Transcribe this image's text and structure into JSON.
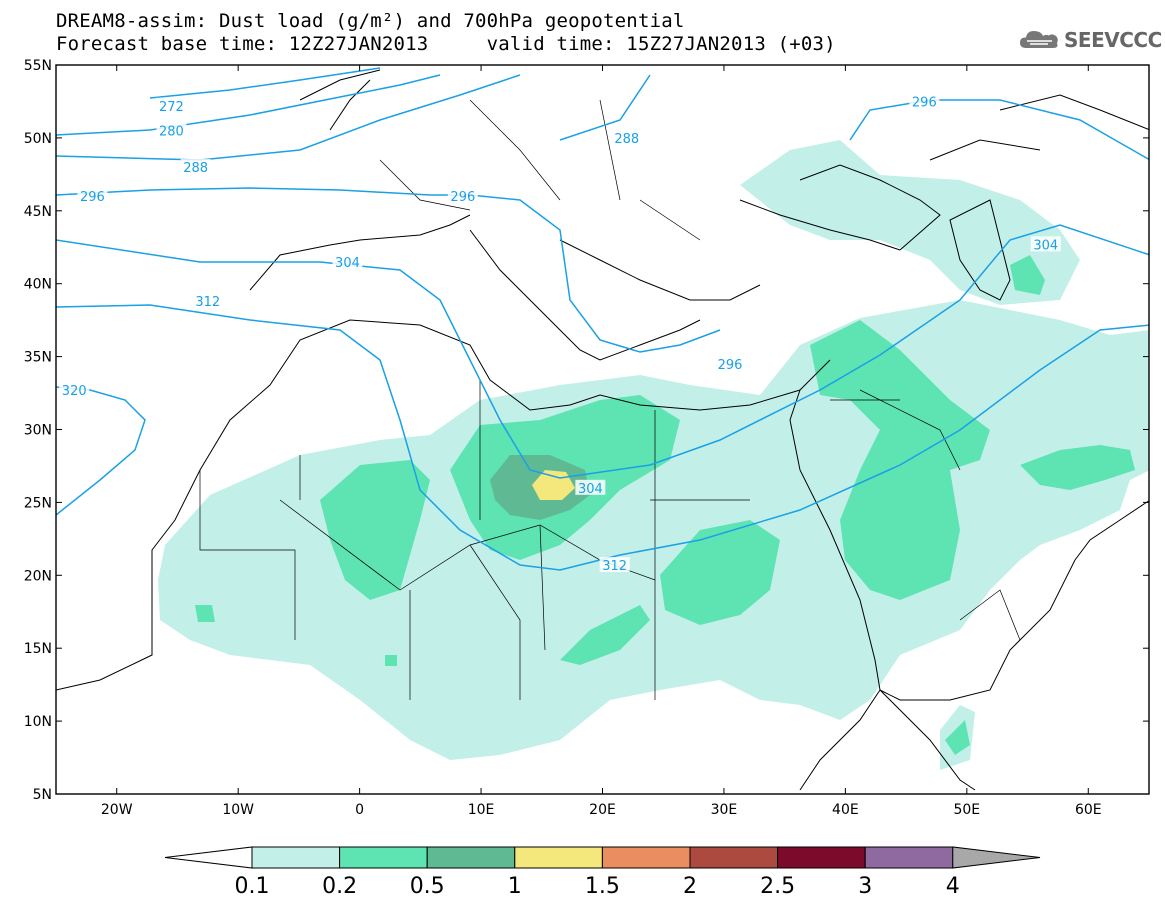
{
  "title": {
    "line1": "DREAM8-assim: Dust load (g/m²) and 700hPa geopotential",
    "line2": "Forecast base time: 12Z27JAN2013     valid time: 15Z27JAN2013 (+03)"
  },
  "logo": {
    "text": "SEEVCCC",
    "icon": "cloud-icon"
  },
  "map": {
    "lon_range": [
      -25,
      65
    ],
    "lat_range": [
      5,
      55
    ],
    "lon_ticks": [
      "20W",
      "10W",
      "0",
      "10E",
      "20E",
      "30E",
      "40E",
      "50E",
      "60E"
    ],
    "lon_tick_values": [
      -20,
      -10,
      0,
      10,
      20,
      30,
      40,
      50,
      60
    ],
    "lat_ticks": [
      "55N",
      "50N",
      "45N",
      "40N",
      "35N",
      "30N",
      "25N",
      "20N",
      "15N",
      "10N",
      "5N"
    ],
    "lat_tick_values": [
      55,
      50,
      45,
      40,
      35,
      30,
      25,
      20,
      15,
      10,
      5
    ],
    "contour_labels": [
      {
        "text": "272",
        "lon": -15.5,
        "lat": 52.2
      },
      {
        "text": "280",
        "lon": -15.5,
        "lat": 50.5
      },
      {
        "text": "288",
        "lon": -13.5,
        "lat": 48.0
      },
      {
        "text": "288",
        "lon": 22.0,
        "lat": 50.0
      },
      {
        "text": "296",
        "lon": -22.0,
        "lat": 46.0
      },
      {
        "text": "296",
        "lon": 30.5,
        "lat": 34.5
      },
      {
        "text": "296",
        "lon": 8.5,
        "lat": 46.0
      },
      {
        "text": "296",
        "lon": 46.5,
        "lat": 52.5
      },
      {
        "text": "304",
        "lon": -1.0,
        "lat": 41.5
      },
      {
        "text": "304",
        "lon": 19.0,
        "lat": 26.0
      },
      {
        "text": "304",
        "lon": 56.5,
        "lat": 42.7
      },
      {
        "text": "312",
        "lon": -12.5,
        "lat": 38.8
      },
      {
        "text": "312",
        "lon": 21.0,
        "lat": 20.7
      },
      {
        "text": "320",
        "lon": -23.5,
        "lat": 32.7
      }
    ]
  },
  "colorbar": {
    "labels": [
      "0.1",
      "0.2",
      "0.5",
      "1",
      "1.5",
      "2",
      "2.5",
      "3",
      "4"
    ],
    "colors": [
      "#c2f0e9",
      "#5ee3b3",
      "#5fba93",
      "#f4e77c",
      "#ea8e62",
      "#ad4a40",
      "#7b0a2b",
      "#8f6aa0"
    ],
    "under_color": "#ffffff",
    "over_color": "#a8a8a8"
  }
}
